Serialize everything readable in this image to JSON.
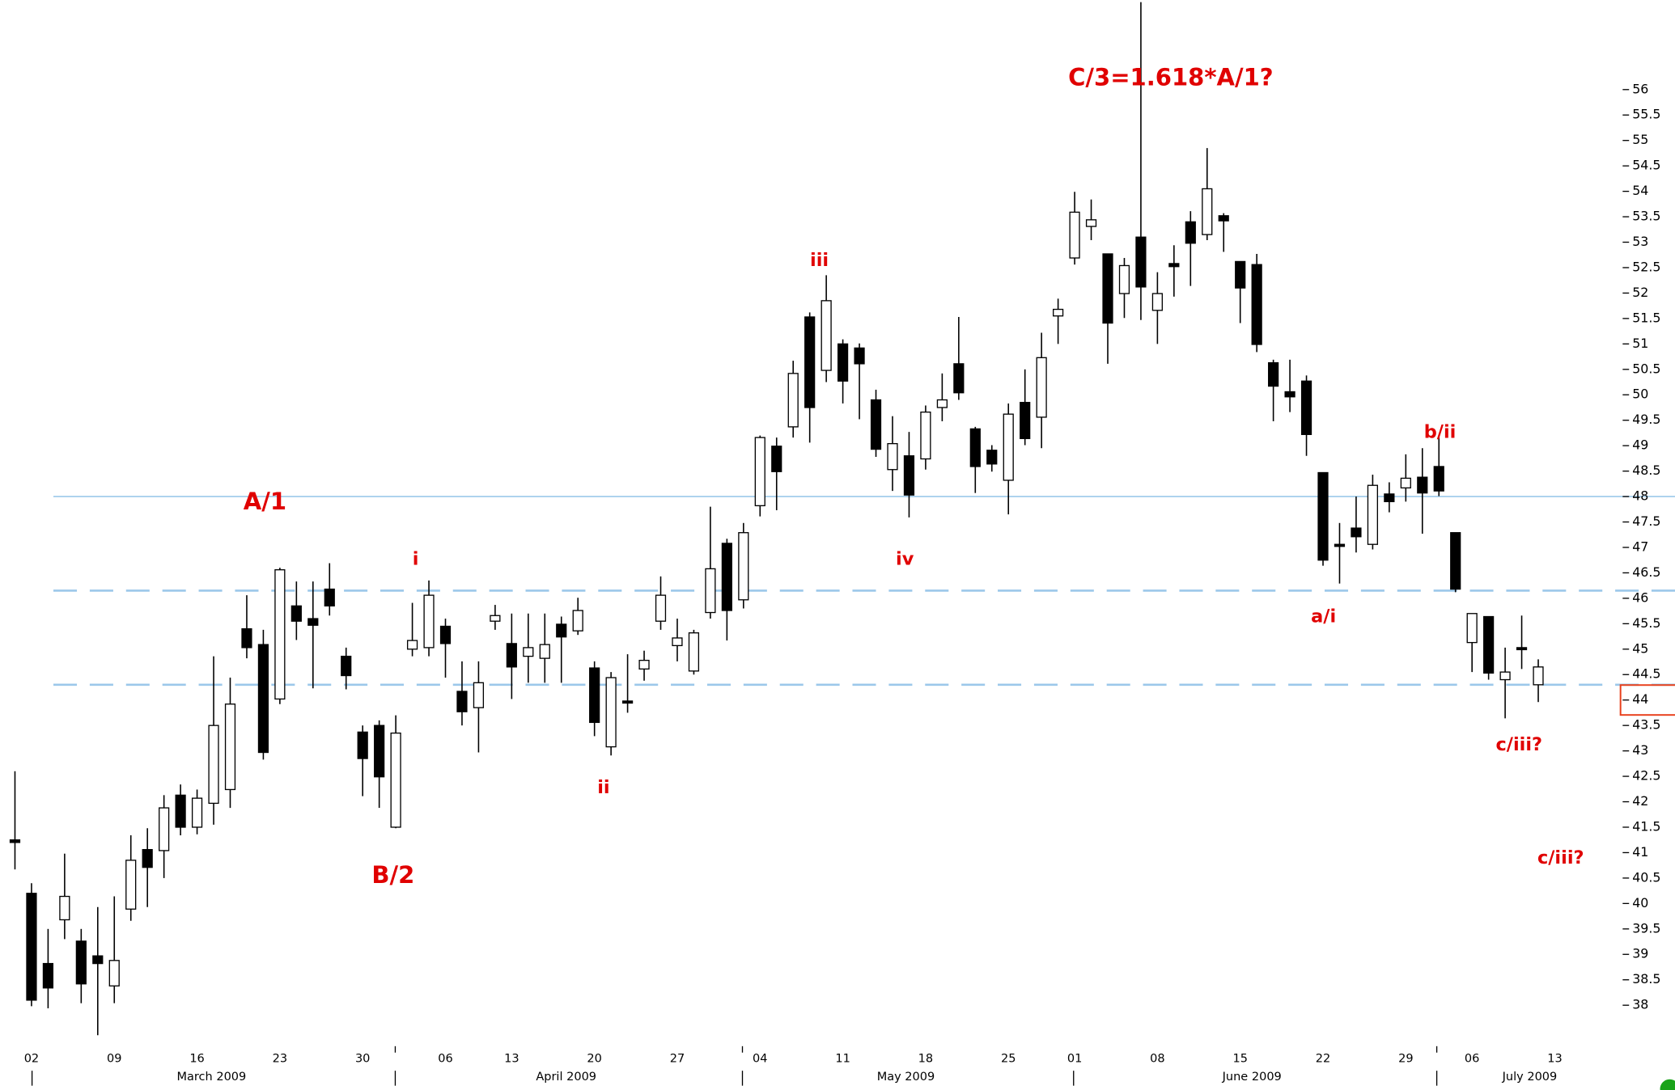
{
  "chart_data": {
    "type": "candlestick",
    "categories": [
      null,
      "02",
      null,
      null,
      null,
      null,
      "09",
      null,
      null,
      null,
      null,
      "16",
      null,
      null,
      null,
      null,
      "23",
      null,
      null,
      null,
      null,
      "30",
      null,
      null,
      null,
      null,
      "06",
      null,
      null,
      null,
      "13",
      null,
      null,
      null,
      null,
      "20",
      null,
      null,
      null,
      null,
      "27",
      null,
      null,
      null,
      null,
      "04",
      null,
      null,
      null,
      null,
      "11",
      null,
      null,
      null,
      null,
      "18",
      null,
      null,
      null,
      null,
      "25",
      null,
      null,
      null,
      "01",
      null,
      null,
      null,
      null,
      "08",
      null,
      null,
      null,
      null,
      "15",
      null,
      null,
      null,
      null,
      "22",
      null,
      null,
      null,
      null,
      "29",
      null,
      null,
      null,
      "06",
      null,
      null,
      null,
      null,
      "13"
    ],
    "months": [
      "March 2009",
      "April 2009",
      "May 2009",
      "June 2009",
      "July 2009"
    ],
    "open": [
      41.25,
      40.2,
      38.82,
      39.68,
      39.26,
      38.97,
      38.38,
      39.89,
      41.06,
      41.04,
      42.13,
      41.5,
      41.97,
      42.24,
      45.4,
      45.09,
      44.02,
      45.85,
      45.6,
      46.18,
      44.86,
      43.37,
      43.5,
      41.5,
      45.0,
      45.03,
      45.45,
      44.17,
      43.85,
      45.55,
      45.11,
      44.86,
      44.82,
      45.49,
      45.36,
      44.63,
      43.08,
      43.98,
      44.61,
      45.55,
      45.07,
      44.57,
      45.72,
      47.08,
      45.97,
      47.82,
      48.99,
      49.37,
      51.53,
      50.48,
      51.0,
      50.92,
      49.9,
      48.53,
      48.8,
      48.74,
      49.75,
      50.61,
      49.33,
      48.91,
      48.32,
      49.85,
      49.56,
      51.55,
      52.69,
      53.31,
      52.77,
      51.99,
      53.1,
      51.66,
      52.58,
      53.4,
      53.15,
      53.52,
      52.62,
      52.56,
      50.63,
      50.06,
      50.27,
      48.47,
      47.06,
      47.38,
      47.06,
      48.05,
      48.17,
      48.38,
      48.59,
      47.29,
      45.13,
      45.64,
      44.4,
      45.03,
      44.3,
      null
    ],
    "high": [
      42.6,
      40.4,
      39.5,
      40.98,
      39.5,
      39.93,
      40.14,
      41.34,
      41.48,
      42.13,
      42.34,
      42.24,
      44.86,
      44.44,
      46.06,
      45.38,
      46.6,
      46.33,
      46.33,
      46.69,
      45.03,
      43.5,
      43.6,
      43.7,
      45.91,
      46.35,
      45.6,
      44.76,
      44.76,
      45.87,
      45.7,
      45.7,
      45.7,
      45.64,
      46.01,
      44.76,
      44.55,
      44.9,
      44.97,
      46.43,
      45.6,
      45.38,
      47.8,
      47.17,
      47.48,
      49.2,
      49.16,
      50.67,
      51.62,
      52.35,
      51.09,
      51.01,
      50.1,
      49.58,
      49.27,
      49.79,
      50.42,
      51.53,
      49.37,
      49.01,
      49.83,
      50.5,
      51.22,
      51.89,
      53.99,
      53.84,
      52.77,
      52.69,
      57.72,
      52.41,
      52.94,
      53.61,
      54.85,
      53.57,
      52.62,
      52.77,
      50.69,
      50.69,
      50.38,
      48.47,
      47.48,
      48.0,
      48.43,
      48.28,
      48.83,
      48.95,
      49.2,
      47.29,
      45.7,
      45.64,
      45.03,
      45.66,
      44.8,
      null
    ],
    "low": [
      40.67,
      37.98,
      37.94,
      39.3,
      38.04,
      37.41,
      38.04,
      39.66,
      39.93,
      40.5,
      41.34,
      41.36,
      41.55,
      41.88,
      44.82,
      42.83,
      43.92,
      45.18,
      44.23,
      45.66,
      44.21,
      42.11,
      41.88,
      41.48,
      44.86,
      44.86,
      44.44,
      43.5,
      42.97,
      45.38,
      44.02,
      44.34,
      44.34,
      44.34,
      45.28,
      43.29,
      42.91,
      43.75,
      44.38,
      45.38,
      44.76,
      44.5,
      45.6,
      45.17,
      45.8,
      47.61,
      47.73,
      49.16,
      49.06,
      50.25,
      49.83,
      49.52,
      48.78,
      48.11,
      47.59,
      48.53,
      49.48,
      49.9,
      48.07,
      48.49,
      47.65,
      49.01,
      48.95,
      51.0,
      52.56,
      53.04,
      50.61,
      51.51,
      51.47,
      51.0,
      51.93,
      52.14,
      53.04,
      52.81,
      51.41,
      50.84,
      49.48,
      49.66,
      48.8,
      46.64,
      46.29,
      46.9,
      46.96,
      47.69,
      47.9,
      47.27,
      48.01,
      46.12,
      44.55,
      44.4,
      43.64,
      44.61,
      43.96,
      null
    ],
    "close": [
      41.2,
      38.1,
      38.34,
      40.14,
      38.42,
      38.82,
      38.88,
      40.85,
      40.71,
      41.88,
      41.5,
      42.07,
      43.5,
      43.92,
      45.03,
      42.97,
      46.56,
      45.55,
      45.47,
      45.85,
      44.48,
      42.85,
      42.49,
      43.35,
      45.17,
      46.06,
      45.11,
      43.77,
      44.34,
      45.66,
      44.65,
      45.03,
      45.09,
      45.24,
      45.76,
      43.56,
      44.44,
      43.94,
      44.78,
      46.06,
      45.22,
      45.32,
      46.58,
      45.76,
      47.29,
      49.16,
      48.49,
      50.42,
      49.75,
      51.85,
      50.27,
      50.61,
      48.93,
      49.04,
      48.03,
      49.66,
      49.9,
      50.04,
      48.59,
      48.64,
      49.62,
      49.14,
      50.73,
      51.68,
      53.59,
      53.44,
      51.41,
      52.54,
      52.12,
      51.99,
      52.52,
      52.98,
      54.05,
      53.42,
      52.1,
      50.99,
      50.17,
      49.96,
      49.22,
      46.75,
      47.02,
      47.21,
      48.22,
      47.9,
      48.36,
      48.07,
      48.11,
      46.18,
      45.7,
      44.53,
      44.55,
      44.99,
      44.65,
      null
    ],
    "up_color": "#ffffff",
    "down_color": "#000000",
    "ylim": [
      37.3,
      57.76
    ],
    "yticks": [
      38,
      38.5,
      39,
      39.5,
      40,
      40.5,
      41,
      41.5,
      42,
      42.5,
      43,
      43.5,
      44,
      44.5,
      45,
      45.5,
      46,
      46.5,
      47,
      47.5,
      48,
      48.5,
      49,
      49.5,
      50,
      50.5,
      51,
      51.5,
      52,
      52.5,
      53,
      53.5,
      54,
      54.5,
      55,
      55.5,
      56
    ],
    "hlines": [
      {
        "value": 48,
        "style": "solid",
        "color": "#9cc8ea"
      },
      {
        "value": 46.15,
        "style": "dashed",
        "color": "#9cc8ea"
      },
      {
        "value": 44.3,
        "style": "dashed",
        "color": "#9cc8ea"
      }
    ],
    "price_marker": {
      "value": 44,
      "color": "#e8401c"
    },
    "annotations": [
      "C/3=1.618*A/1?",
      "A/1",
      "B/2",
      "i",
      "ii",
      "iii",
      "iv",
      "a/i",
      "b/ii",
      "c/iii?",
      "c/iii?"
    ]
  }
}
